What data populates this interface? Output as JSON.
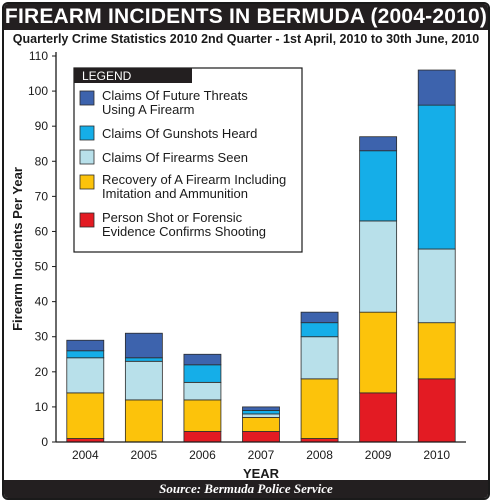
{
  "header": {
    "title": "FIREARM INCIDENTS IN BERMUDA (2004-2010)",
    "subtitle": "Quarterly Crime Statistics 2010 2nd Quarter - 1st April, 2010 to 30th June, 2010"
  },
  "footer": {
    "source": "Source: Bermuda Police Service"
  },
  "chart_data": {
    "type": "bar",
    "stacked": true,
    "categories": [
      "2004",
      "2005",
      "2006",
      "2007",
      "2008",
      "2009",
      "2010"
    ],
    "xlabel": "YEAR",
    "ylabel": "Firearm Incidents Per Year",
    "ylim": [
      0,
      110
    ],
    "yticks": [
      0,
      10,
      20,
      30,
      40,
      50,
      60,
      70,
      80,
      90,
      100,
      110
    ],
    "grid": false,
    "legend_title": "LEGEND",
    "legend_position": "top-left",
    "series": [
      {
        "name": "Person Shot or Forensic Evidence Confirms Shooting",
        "legend_lines": [
          "Person Shot or Forensic",
          "Evidence Confirms Shooting"
        ],
        "color": "#e31b23",
        "values": [
          1,
          0,
          3,
          3,
          1,
          14,
          18
        ]
      },
      {
        "name": "Recovery of A Firearm Including Imitation and Ammunition",
        "legend_lines": [
          "Recovery of A Firearm Including",
          "Imitation and Ammunition"
        ],
        "color": "#fcc30b",
        "values": [
          13,
          12,
          9,
          4,
          17,
          23,
          16
        ]
      },
      {
        "name": "Claims Of Firearms Seen",
        "legend_lines": [
          "Claims Of Firearms Seen"
        ],
        "color": "#b8e0ea",
        "values": [
          10,
          11,
          5,
          1,
          12,
          26,
          21
        ]
      },
      {
        "name": "Claims Of Gunshots Heard",
        "legend_lines": [
          "Claims Of Gunshots Heard"
        ],
        "color": "#15aee8",
        "values": [
          2,
          1,
          5,
          1,
          4,
          20,
          41
        ]
      },
      {
        "name": "Claims Of Future Threats Using A Firearm",
        "legend_lines": [
          "Claims Of Future Threats",
          "Using A Firearm"
        ],
        "color": "#3d63ad",
        "values": [
          3,
          7,
          3,
          1,
          3,
          4,
          10
        ]
      }
    ]
  }
}
